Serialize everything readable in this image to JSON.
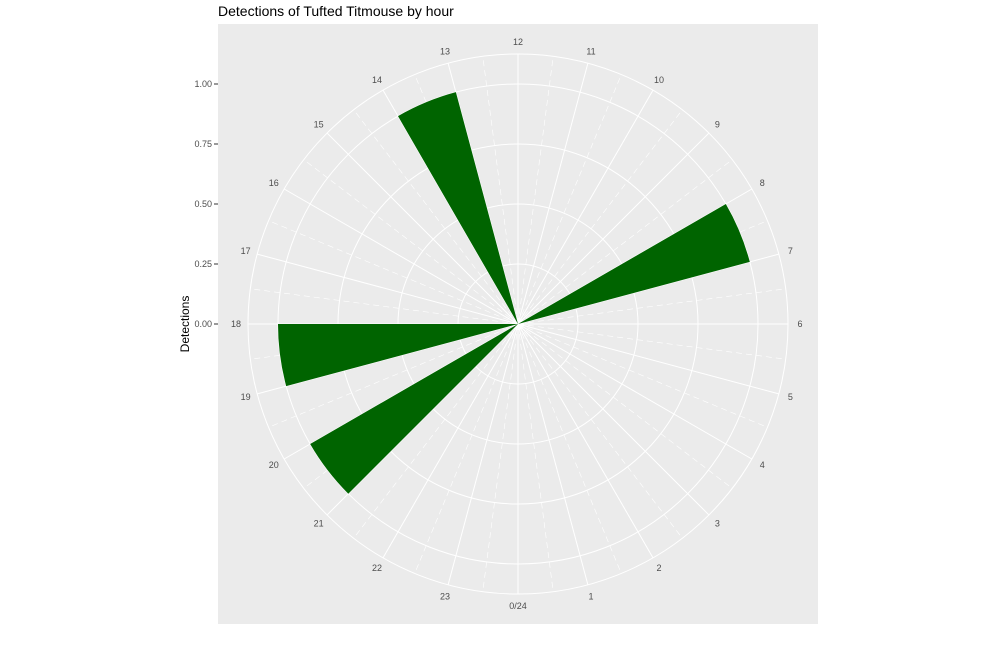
{
  "chart_data": {
    "type": "bar",
    "coord": "polar",
    "title": "Detections of Tufted Titmouse by hour",
    "xlabel": "",
    "ylabel": "Detections",
    "categories": [
      "0/24",
      "1",
      "2",
      "3",
      "4",
      "5",
      "6",
      "7",
      "8",
      "9",
      "10",
      "11",
      "12",
      "13",
      "14",
      "15",
      "16",
      "17",
      "18",
      "19",
      "20",
      "21",
      "22",
      "23"
    ],
    "values": [
      0,
      0,
      0,
      0,
      0,
      0,
      0,
      1,
      0,
      0,
      0,
      0,
      0,
      1,
      0,
      0,
      0,
      0,
      1,
      0,
      1,
      0,
      0,
      0
    ],
    "ylim": [
      0,
      1
    ],
    "yticks": [
      "0.00",
      "0.25",
      "0.50",
      "0.75",
      "1.00"
    ],
    "ytick_values": [
      0,
      0.25,
      0.5,
      0.75,
      1.0
    ],
    "bar_color": "#006400",
    "panel_color": "#EBEBEB",
    "grid_color": "#FFFFFF",
    "grid": true
  }
}
